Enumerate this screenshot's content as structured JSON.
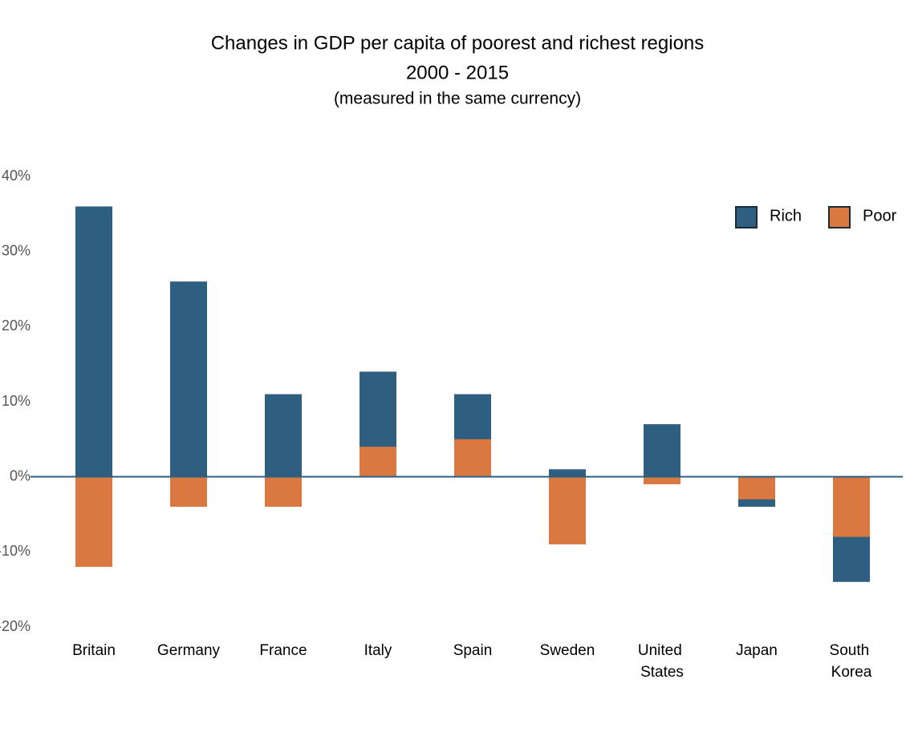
{
  "chart_data": {
    "type": "bar",
    "title": "Changes in GDP per capita of poorest and richest regions",
    "subtitle": "2000 - 2015",
    "note": "(measured in the same currency)",
    "categories": [
      "Britain",
      "Germany",
      "France",
      "Italy",
      "Spain",
      "Sweden",
      "United States",
      "Japan",
      "South Korea"
    ],
    "series": [
      {
        "name": "Rich",
        "color": "#2e5f80",
        "values": [
          36,
          26,
          11,
          14,
          11,
          1,
          7,
          -4,
          -14
        ]
      },
      {
        "name": "Poor",
        "color": "#d97941",
        "values": [
          -12,
          -4,
          -4,
          4,
          5,
          -9,
          -1,
          -3,
          -8
        ]
      }
    ],
    "ylim": [
      -20,
      40
    ],
    "yticks": [
      {
        "value": 40,
        "label": "40%"
      },
      {
        "value": 30,
        "label": "30%"
      },
      {
        "value": 20,
        "label": "20%"
      },
      {
        "value": 10,
        "label": "10%"
      },
      {
        "value": 0,
        "label": "0%"
      },
      {
        "value": -10,
        "label": "-10%"
      },
      {
        "value": -20,
        "label": "-20%"
      }
    ],
    "grid": false,
    "legend": "upper right"
  }
}
